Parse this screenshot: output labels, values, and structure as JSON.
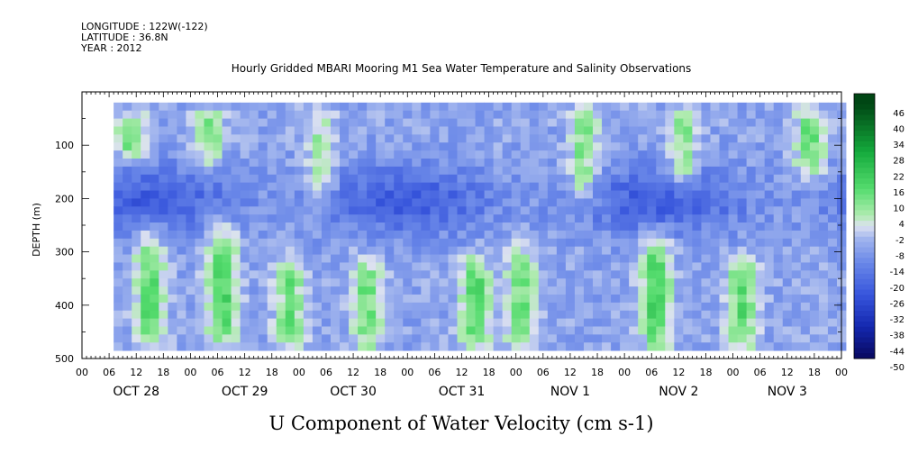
{
  "header": {
    "longitude": "LONGITUDE : 122W(-122)",
    "latitude": "LATITUDE : 36.8N",
    "year": "YEAR : 2012"
  },
  "chart_data": {
    "type": "heatmap",
    "title": "Hourly Gridded MBARI Mooring M1 Sea Water Temperature and Salinity Observations",
    "xlabel": "U Component of Water Velocity (cm s-1)",
    "ylabel": "DEPTH (m)",
    "ylim": [
      500,
      0
    ],
    "y_reversed": true,
    "yticks": [
      100,
      200,
      300,
      400,
      500
    ],
    "xticks_hours": [
      "00",
      "06",
      "12",
      "18",
      "00",
      "06",
      "12",
      "18",
      "00",
      "06",
      "12",
      "18",
      "00",
      "06",
      "12",
      "18",
      "00",
      "06",
      "12",
      "18",
      "00",
      "06",
      "12",
      "18",
      "00",
      "06",
      "12",
      "18",
      "00"
    ],
    "day_labels": [
      "OCT 28",
      "OCT 29",
      "OCT 30",
      "OCT 31",
      "NOV  1",
      "NOV  2",
      "NOV  3"
    ],
    "time_range_hours": [
      0,
      168
    ],
    "data_time_range_hours": [
      7,
      169
    ],
    "data_depth_range_m": [
      20,
      485
    ],
    "colorbar": {
      "levels": [
        46,
        40,
        34,
        28,
        22,
        16,
        10,
        4,
        -2,
        -8,
        -14,
        -20,
        -26,
        -32,
        -38,
        -44,
        -50
      ],
      "range": [
        -50,
        50
      ]
    },
    "summary_pattern": {
      "background_value": -8,
      "negative_core": {
        "depth_range_m": [
          130,
          260
        ],
        "value": -24
      },
      "positive_bands": [
        {
          "time_h": 10,
          "depth_range_m": [
            30,
            120
          ],
          "value": 12
        },
        {
          "time_h": 14,
          "depth_range_m": [
            250,
            480
          ],
          "value": 14
        },
        {
          "time_h": 27,
          "depth_range_m": [
            20,
            130
          ],
          "value": 10
        },
        {
          "time_h": 30,
          "depth_range_m": [
            240,
            470
          ],
          "value": 18
        },
        {
          "time_h": 45,
          "depth_range_m": [
            300,
            480
          ],
          "value": 12
        },
        {
          "time_h": 52,
          "depth_range_m": [
            20,
            200
          ],
          "value": 6
        },
        {
          "time_h": 62,
          "depth_range_m": [
            300,
            480
          ],
          "value": 12
        },
        {
          "time_h": 86,
          "depth_range_m": [
            300,
            480
          ],
          "value": 16
        },
        {
          "time_h": 96,
          "depth_range_m": [
            280,
            480
          ],
          "value": 12
        },
        {
          "time_h": 110,
          "depth_range_m": [
            20,
            200
          ],
          "value": 10
        },
        {
          "time_h": 126,
          "depth_range_m": [
            260,
            480
          ],
          "value": 18
        },
        {
          "time_h": 132,
          "depth_range_m": [
            20,
            180
          ],
          "value": 10
        },
        {
          "time_h": 145,
          "depth_range_m": [
            300,
            480
          ],
          "value": 14
        },
        {
          "time_h": 160,
          "depth_range_m": [
            20,
            160
          ],
          "value": 12
        }
      ]
    }
  }
}
